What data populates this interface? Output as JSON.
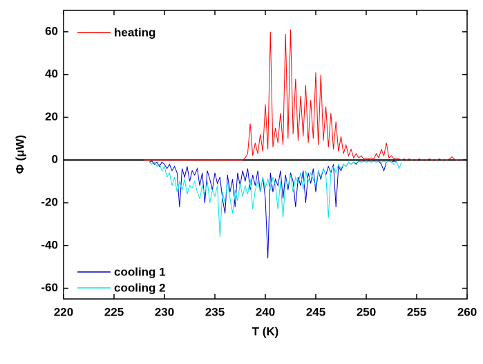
{
  "chart_data": {
    "type": "line",
    "xlabel": "T  (K)",
    "ylabel": "Φ  (μW)",
    "xlim": [
      220,
      260
    ],
    "xticks": [
      220,
      225,
      230,
      235,
      240,
      245,
      250,
      255,
      260
    ],
    "ylim": [
      -65,
      70
    ],
    "yticks": [
      -60,
      -40,
      -20,
      0,
      20,
      40,
      60
    ],
    "x": [
      228,
      228.25,
      228.5,
      228.75,
      229,
      229.25,
      229.5,
      229.75,
      230,
      230.25,
      230.5,
      230.75,
      231,
      231.25,
      231.5,
      231.75,
      232,
      232.25,
      232.5,
      232.75,
      233,
      233.25,
      233.5,
      233.75,
      234,
      234.25,
      234.5,
      234.75,
      235,
      235.25,
      235.5,
      235.75,
      236,
      236.25,
      236.5,
      236.75,
      237,
      237.25,
      237.5,
      237.75,
      238,
      238.25,
      238.5,
      238.75,
      239,
      239.25,
      239.5,
      239.75,
      240,
      240.25,
      240.5,
      240.75,
      241,
      241.25,
      241.5,
      241.75,
      242,
      242.25,
      242.5,
      242.75,
      243,
      243.25,
      243.5,
      243.75,
      244,
      244.25,
      244.5,
      244.75,
      245,
      245.25,
      245.5,
      245.75,
      246,
      246.25,
      246.5,
      246.75,
      247,
      247.25,
      247.5,
      247.75,
      248,
      248.25,
      248.5,
      248.75,
      249,
      249.25,
      249.5,
      249.75,
      250,
      250.25,
      250.5,
      250.75,
      251,
      251.25,
      251.5,
      251.75,
      252,
      252.25,
      252.5,
      252.75,
      253,
      253.25,
      253.5,
      253.75,
      254,
      254.25,
      254.5,
      254.75,
      255,
      255.25,
      255.5,
      255.75,
      256,
      256.25,
      256.5,
      256.75,
      257,
      257.25,
      257.5,
      257.75,
      258,
      258.25,
      258.5,
      258.75,
      259,
      259.25,
      259.5,
      259.75,
      260
    ],
    "series": [
      {
        "name": "heating",
        "color": "#ff0000",
        "values": [
          0,
          0,
          0,
          0,
          0,
          0,
          0,
          0,
          0,
          0,
          0,
          0,
          0,
          0,
          0,
          0,
          0,
          0,
          0,
          0,
          0,
          0,
          0,
          0,
          0,
          0,
          0,
          0,
          0,
          0,
          0,
          0,
          0,
          0,
          0,
          0,
          0,
          0,
          0,
          0,
          1,
          3,
          17,
          2,
          8,
          3,
          12,
          4,
          26,
          5,
          60,
          6,
          15,
          8,
          22,
          7,
          59,
          10,
          61,
          12,
          38,
          9,
          30,
          11,
          35,
          8,
          28,
          10,
          41,
          7,
          40,
          9,
          25,
          6,
          22,
          5,
          18,
          4,
          11,
          3,
          7,
          2,
          5,
          1,
          3,
          1,
          2,
          0.5,
          1,
          0.5,
          1,
          0.5,
          3,
          1,
          5,
          2,
          8,
          1,
          2,
          0.5,
          1,
          0.5,
          0,
          0.5,
          0,
          0.5,
          0,
          0.3,
          0,
          0.5,
          0,
          0.3,
          0,
          0.5,
          0,
          0.3,
          0,
          0.5,
          0,
          0.3,
          0,
          0.5,
          1.5,
          0.3,
          0,
          0.3,
          0,
          0.3,
          0
        ]
      },
      {
        "name": "cooling 1",
        "color": "#0000cc",
        "values": [
          null,
          null,
          -1,
          -0.5,
          -2,
          -1,
          -3,
          -1,
          -2,
          -4,
          -2,
          -5,
          -3,
          -6,
          -22,
          -4,
          -8,
          -3,
          -10,
          -5,
          -7,
          -4,
          -12,
          -6,
          -20,
          -5,
          -9,
          -14,
          -6,
          -11,
          -8,
          -18,
          -25,
          -7,
          -15,
          -9,
          -22,
          -6,
          -12,
          -5,
          -10,
          -4,
          -14,
          -7,
          -12,
          -5,
          -15,
          -8,
          -18,
          -46,
          -6,
          -15,
          -9,
          -12,
          -5,
          -18,
          -7,
          -14,
          -6,
          -10,
          -22,
          -8,
          -12,
          -5,
          -20,
          -6,
          -11,
          -4,
          -15,
          -5,
          -9,
          -4,
          -7,
          -3,
          -6,
          -2,
          -22,
          -3,
          -5,
          -2,
          -3,
          -1,
          -2,
          -1,
          -2,
          -0.5,
          -1,
          -0.5,
          -1,
          -0.5,
          -1,
          -0.5,
          -1,
          -0.5,
          -2,
          -5,
          -1,
          -0.5,
          -1,
          -0.5,
          -1,
          null,
          null,
          null,
          null,
          null,
          null,
          null,
          null,
          null,
          null,
          null,
          null,
          null,
          null,
          null,
          null,
          null,
          null,
          null,
          null,
          null,
          null,
          null,
          null,
          null,
          null,
          null,
          null
        ]
      },
      {
        "name": "cooling 2",
        "color": "#00e5ee",
        "values": [
          null,
          null,
          -1,
          -2,
          -1,
          -3,
          -2,
          -5,
          -3,
          -8,
          -6,
          -12,
          -8,
          -15,
          -10,
          -14,
          -9,
          -16,
          -12,
          -13,
          -10,
          -15,
          -18,
          -12,
          -16,
          -10,
          -20,
          -14,
          -17,
          -12,
          -36,
          -15,
          -20,
          -10,
          -18,
          -25,
          -14,
          -19,
          -11,
          -17,
          -12,
          -16,
          -9,
          -23,
          -14,
          -10,
          -15,
          -8,
          -13,
          -9,
          -14,
          -8,
          -12,
          -23,
          -10,
          -27,
          -9,
          -12,
          -7,
          -15,
          -8,
          -11,
          -6,
          -14,
          -5,
          -10,
          -6,
          -9,
          -12,
          -5,
          -8,
          -4,
          -7,
          -27,
          -5,
          -3,
          -6,
          -2,
          -4,
          -2,
          -3,
          -1,
          -2,
          -1,
          -1.5,
          -0.5,
          -1,
          -0.5,
          -1,
          -0.5,
          -1,
          -0.5,
          -1,
          -0.5,
          -1,
          -0.5,
          -1,
          -0.5,
          -1,
          -2,
          -0.5,
          -4,
          -1,
          null,
          null,
          null,
          null,
          null,
          null,
          null,
          null,
          null,
          null,
          null,
          null,
          null,
          null,
          null,
          null,
          null,
          null,
          null,
          null,
          null,
          null,
          null,
          null,
          null,
          null
        ]
      }
    ]
  }
}
